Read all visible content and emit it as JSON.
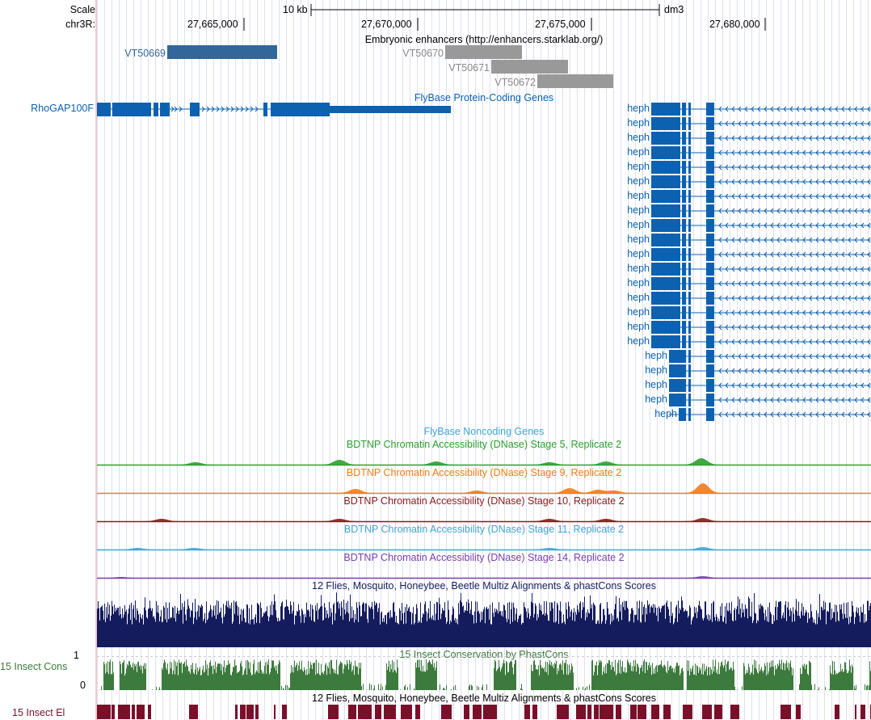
{
  "ruler": {
    "scale_label": "Scale",
    "chrom_label": "chr3R:",
    "scale_bar_text": "10 kb",
    "assembly": "dm3",
    "ticks": [
      "27,665,000",
      "27,670,000",
      "27,675,000",
      "27,680,000"
    ]
  },
  "tracks": {
    "enhancers": {
      "title": "Embryonic enhancers (http://enhancers.starklab.org/)",
      "items": [
        "VT50669",
        "VT50670",
        "VT50671",
        "VT50672"
      ],
      "colors": {
        "selected": "#336699",
        "other": "#999999"
      }
    },
    "genes": {
      "title": "FlyBase Protein-Coding Genes",
      "color": "#0c61b0",
      "left_gene": "RhoGAP100F",
      "right_gene": "heph",
      "right_gene_row_count": 22
    },
    "noncoding": {
      "title": "FlyBase Noncoding Genes"
    },
    "dnase": [
      {
        "title": "BDTNP Chromatin Accessibility (DNase) Stage 5, Replicate 2",
        "color": "#2ca02c"
      },
      {
        "title": "BDTNP Chromatin Accessibility (DNase) Stage 9, Replicate 2",
        "color": "#f07c19"
      },
      {
        "title": "BDTNP Chromatin Accessibility (DNase) Stage 10, Replicate 2",
        "color": "#8b1a1a"
      },
      {
        "title": "BDTNP Chromatin Accessibility (DNase) Stage 11, Replicate 2",
        "color": "#3fa6d6"
      },
      {
        "title": "BDTNP Chromatin Accessibility (DNase) Stage 14, Replicate 2",
        "color": "#7a3fb0"
      }
    ],
    "multiz": {
      "title": "12 Flies, Mosquito, Honeybee, Beetle Multiz Alignments & phastCons Scores",
      "color": "#141c5e"
    },
    "phastcons": {
      "title": "15 Insect Conservation by PhastCons",
      "side_label": "15 Insect Cons",
      "axis_max": "1",
      "axis_min": "0",
      "color": "#3d7a3d"
    },
    "elements": {
      "title": "12 Flies, Mosquito, Honeybee, Beetle Multiz Alignments & phastCons Scores",
      "side_label": "15 Insect El",
      "color": "#7a0f2a"
    }
  }
}
